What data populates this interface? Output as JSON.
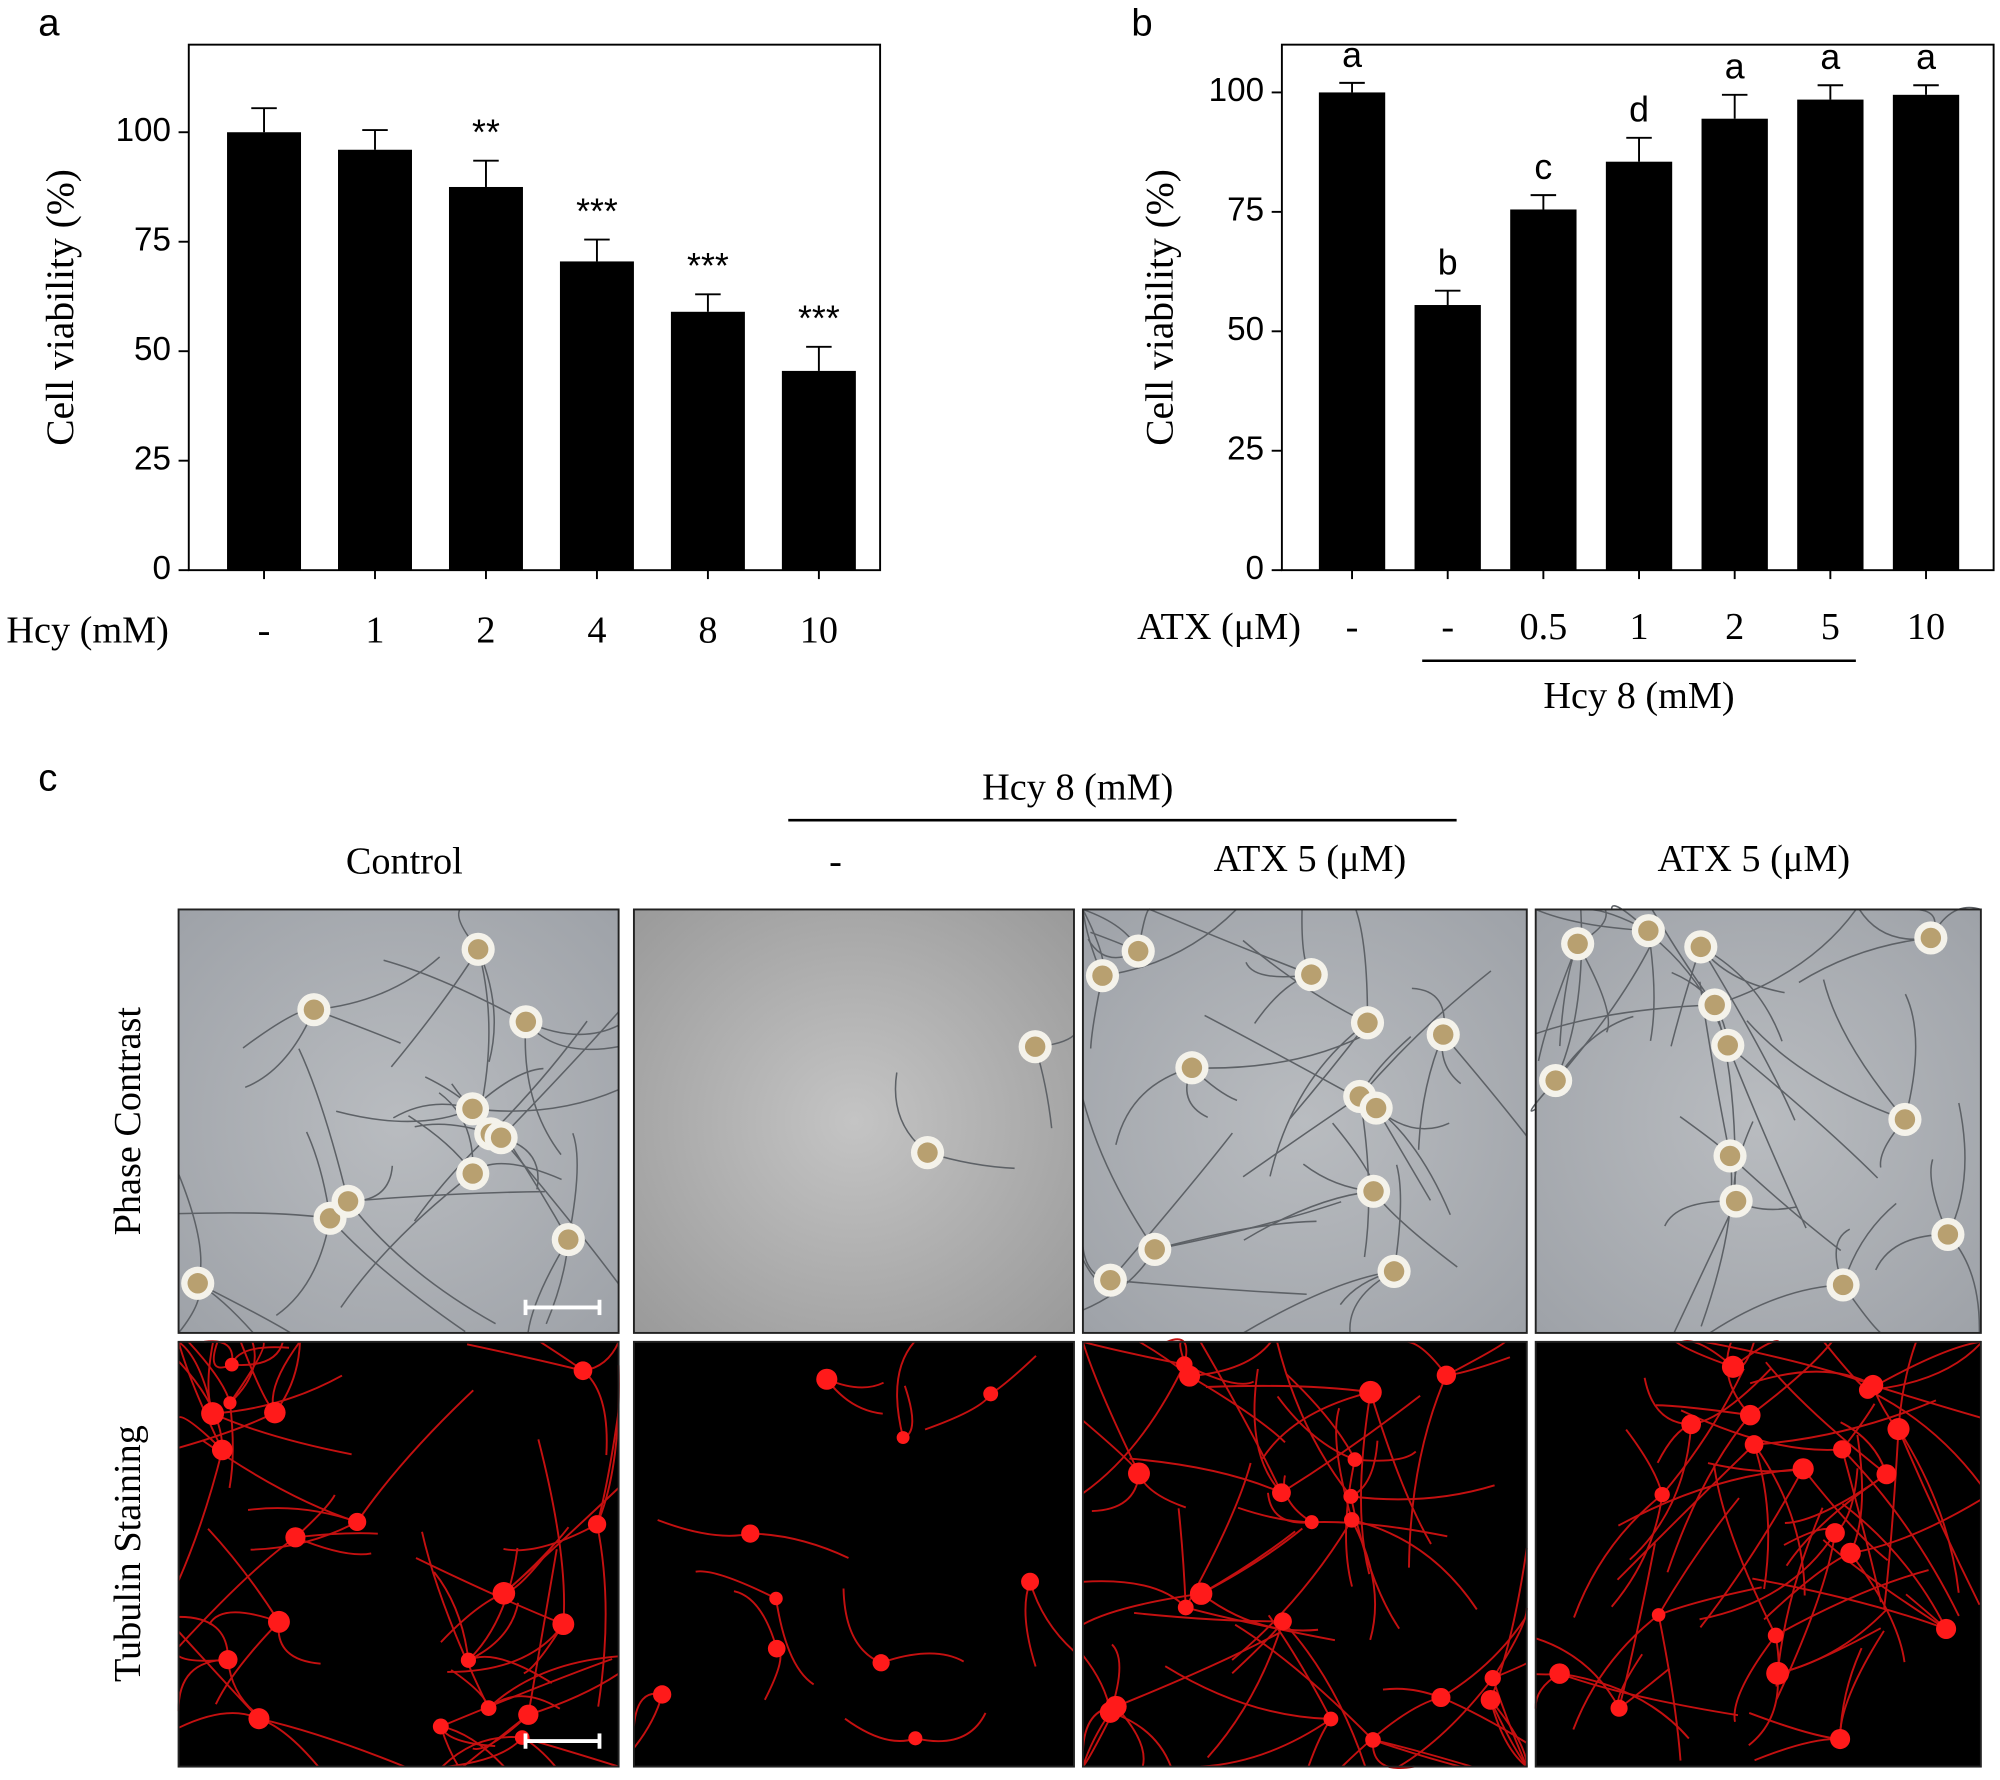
{
  "chart_data": [
    {
      "type": "bar",
      "panel_label": "a",
      "ylabel": "Cell viability (%)",
      "xlabel": "Hcy (mM)",
      "categories": [
        "-",
        "1",
        "2",
        "4",
        "8",
        "10"
      ],
      "values": [
        100,
        96,
        87.5,
        70.5,
        59,
        45.5
      ],
      "errors": [
        5.5,
        4.5,
        6,
        5,
        4,
        5.5
      ],
      "annotations": [
        null,
        null,
        "**",
        "***",
        "***",
        "***"
      ],
      "color": "#000000",
      "ylim": [
        0,
        120
      ],
      "yticks": [
        0,
        25,
        50,
        75,
        100
      ]
    },
    {
      "type": "bar",
      "panel_label": "b",
      "ylabel": "Cell viability (%)",
      "xlabel": "ATX (μM)",
      "categories": [
        "-",
        "-",
        "0.5",
        "1",
        "2",
        "5",
        "10"
      ],
      "values": [
        100,
        55.5,
        75.5,
        85.5,
        94.5,
        98.5,
        99.5
      ],
      "errors": [
        2,
        3,
        3,
        5,
        5,
        3,
        2
      ],
      "annotations": [
        "a",
        "b",
        "c",
        "d",
        "a",
        "a",
        "a"
      ],
      "group_label": "Hcy 8 (mM)",
      "color": "#000000",
      "ylim": [
        0,
        110
      ],
      "yticks": [
        0,
        25,
        50,
        75,
        100
      ]
    }
  ],
  "panel_c": {
    "panel_label": "c",
    "group_label": "Hcy 8 (mM)",
    "columns": [
      "Control",
      "-",
      "ATX 5 (μM)",
      "ATX 5 (μM)"
    ],
    "rows": [
      "Phase Contrast",
      "Tubulin Staining"
    ]
  }
}
